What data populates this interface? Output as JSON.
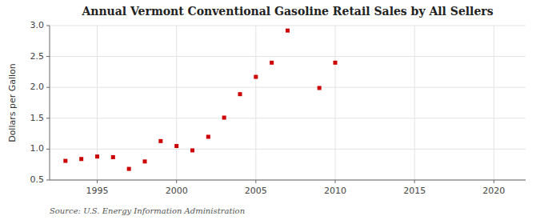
{
  "chart_data": {
    "type": "scatter",
    "title": "Annual Vermont Conventional Gasoline Retail Sales by All Sellers",
    "y_label": "Dollars per Gallon",
    "annotations": [
      "Source: U.S. Energy Information Administration"
    ],
    "x": [
      1993,
      1994,
      1995,
      1996,
      1997,
      1998,
      1999,
      2000,
      2001,
      2002,
      2003,
      2004,
      2005,
      2006,
      2007,
      2009,
      2010
    ],
    "values": [
      0.81,
      0.84,
      0.88,
      0.87,
      0.68,
      0.8,
      1.13,
      1.05,
      0.98,
      1.2,
      1.51,
      1.89,
      2.17,
      2.4,
      2.92,
      1.99,
      2.4
    ],
    "color": "#cc0000",
    "marker": "square",
    "xlim": [
      1992,
      2022
    ],
    "ylim": [
      0.5,
      3.0
    ],
    "xticks": [
      1995,
      2000,
      2005,
      2010,
      2015,
      2020
    ],
    "yticks": [
      0.5,
      {
        "value": 1.0,
        "label": "1.0"
      },
      1.5,
      {
        "value": 2.0,
        "label": "2.0"
      },
      2.5,
      {
        "value": 3.0,
        "label": "3.0"
      }
    ],
    "grid": true
  }
}
